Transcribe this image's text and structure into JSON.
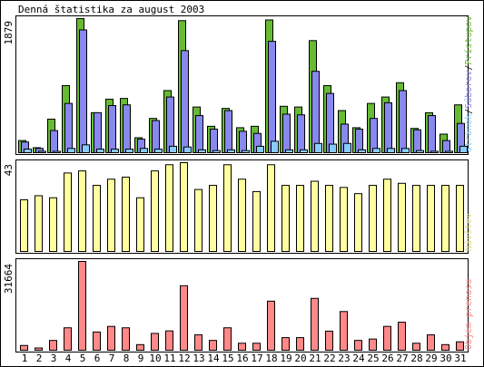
{
  "title": "Denná štatistika za august 2003",
  "colors": {
    "background": "#ffffff",
    "frame": "#000000",
    "pristupov": "#66bb33",
    "suborov": "#8888ee",
    "stranok": "#88ccff",
    "navstev": "#ffffa0",
    "prenos": "#ff8888",
    "weekend_day_label": "#669900",
    "weekday_day_label": "#000000"
  },
  "panels": {
    "hits": {
      "max_label": "1879",
      "legend": [
        {
          "text": "Prístupov",
          "color": "#66bb33"
        },
        {
          "text": "Súborov",
          "color": "#8888ee"
        },
        {
          "text": "Stránok",
          "color": "#88ccff"
        }
      ],
      "separator": "/"
    },
    "visits": {
      "max_label": "43",
      "legend": [
        {
          "text": "Návštev",
          "color": "#dddd88"
        }
      ]
    },
    "volume": {
      "max_label": "31664",
      "legend": [
        {
          "text": "Objem prenosu",
          "color": "#ff8888"
        }
      ]
    }
  },
  "chart_data": {
    "type": "bar",
    "title": "Denná štatistika za august 2003",
    "categories": [
      "1",
      "2",
      "3",
      "4",
      "5",
      "6",
      "7",
      "8",
      "9",
      "10",
      "11",
      "12",
      "13",
      "14",
      "15",
      "16",
      "17",
      "18",
      "19",
      "20",
      "21",
      "22",
      "23",
      "24",
      "25",
      "26",
      "27",
      "28",
      "29",
      "30",
      "31"
    ],
    "weekend_days": [
      "2",
      "3",
      "9",
      "10",
      "16",
      "17",
      "23",
      "24",
      "30",
      "31"
    ],
    "series": [
      {
        "name": "Prístupov",
        "panel": "hits",
        "values": [
          170,
          70,
          470,
          940,
          1879,
          560,
          750,
          760,
          210,
          480,
          870,
          1850,
          640,
          370,
          620,
          350,
          370,
          1860,
          650,
          640,
          1570,
          940,
          590,
          350,
          690,
          780,
          980,
          340,
          560,
          260,
          670
        ]
      },
      {
        "name": "Súborov",
        "panel": "hits",
        "values": [
          150,
          60,
          310,
          690,
          1720,
          560,
          660,
          670,
          190,
          450,
          780,
          1430,
          520,
          330,
          590,
          300,
          270,
          1560,
          540,
          530,
          1140,
          830,
          400,
          330,
          480,
          700,
          870,
          320,
          520,
          170,
          410
        ]
      },
      {
        "name": "Stránok",
        "panel": "hits",
        "values": [
          50,
          20,
          20,
          60,
          110,
          50,
          50,
          50,
          60,
          50,
          90,
          80,
          40,
          30,
          40,
          30,
          90,
          160,
          40,
          40,
          130,
          120,
          130,
          40,
          60,
          60,
          60,
          30,
          20,
          20,
          90
        ]
      },
      {
        "name": "Návštev",
        "panel": "visits",
        "values": [
          25,
          27,
          26,
          38,
          39,
          32,
          35,
          36,
          26,
          39,
          42,
          43,
          30,
          32,
          42,
          35,
          29,
          42,
          32,
          32,
          34,
          32,
          31,
          28,
          32,
          35,
          33,
          32,
          32,
          32,
          32
        ]
      },
      {
        "name": "Objem prenosu",
        "panel": "volume",
        "values": [
          1700,
          800,
          3500,
          8000,
          31664,
          6500,
          8500,
          8000,
          2000,
          6000,
          6900,
          23000,
          5500,
          3500,
          8000,
          2500,
          2500,
          17500,
          4500,
          4500,
          18500,
          6800,
          13800,
          3500,
          4000,
          8500,
          10000,
          2500,
          5500,
          2000,
          3000
        ]
      }
    ],
    "ylim": {
      "hits": [
        0,
        1879
      ],
      "visits": [
        0,
        43
      ],
      "volume": [
        0,
        31664
      ]
    },
    "grid": false,
    "legend_position": "right"
  }
}
